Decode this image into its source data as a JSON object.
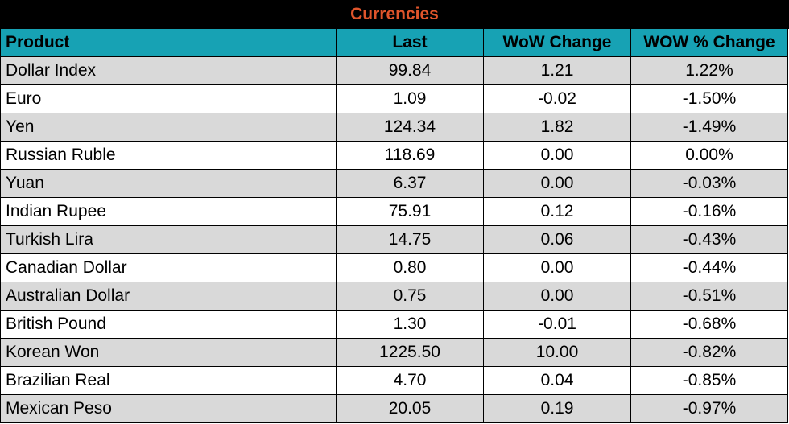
{
  "table": {
    "title": "Currencies",
    "header": [
      "Product",
      "Last",
      "WoW Change",
      "WOW % Change"
    ],
    "rows": [
      [
        "Dollar Index",
        "99.84",
        "1.21",
        "1.22%"
      ],
      [
        "Euro",
        "1.09",
        "-0.02",
        "-1.50%"
      ],
      [
        "Yen",
        "124.34",
        "1.82",
        "-1.49%"
      ],
      [
        "Russian Ruble",
        "118.69",
        "0.00",
        "0.00%"
      ],
      [
        "Yuan",
        "6.37",
        "0.00",
        "-0.03%"
      ],
      [
        "Indian Rupee",
        "75.91",
        "0.12",
        "-0.16%"
      ],
      [
        "Turkish Lira",
        "14.75",
        "0.06",
        "-0.43%"
      ],
      [
        "Canadian Dollar",
        "0.80",
        "0.00",
        "-0.44%"
      ],
      [
        "Australian Dollar",
        "0.75",
        "0.00",
        "-0.51%"
      ],
      [
        "British Pound",
        "1.30",
        "-0.01",
        "-0.68%"
      ],
      [
        "Korean Won",
        "1225.50",
        "10.00",
        "-0.82%"
      ],
      [
        "Brazilian Real",
        "4.70",
        "0.04",
        "-0.85%"
      ],
      [
        "Mexican Peso",
        "20.05",
        "0.19",
        "-0.97%"
      ]
    ]
  }
}
